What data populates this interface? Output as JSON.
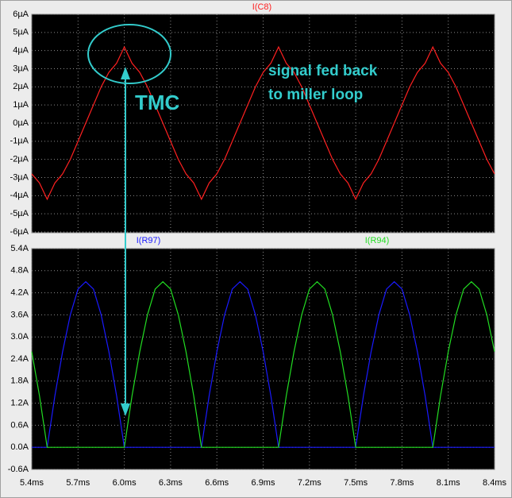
{
  "chart_data": [
    {
      "type": "line",
      "x": [
        5.4,
        5.45,
        5.5,
        5.55,
        5.6,
        5.65,
        5.7,
        5.75,
        5.8,
        5.85,
        5.9,
        5.95,
        6.0,
        6.05,
        6.1,
        6.15,
        6.2,
        6.25,
        6.3,
        6.35,
        6.4,
        6.45,
        6.5,
        6.55,
        6.6,
        6.65,
        6.7,
        6.75,
        6.8,
        6.85,
        6.9,
        6.95,
        7.0,
        7.05,
        7.1,
        7.15,
        7.2,
        7.25,
        7.3,
        7.35,
        7.4,
        7.45,
        7.5,
        7.55,
        7.6,
        7.65,
        7.7,
        7.75,
        7.8,
        7.85,
        7.9,
        7.95,
        8.0,
        8.05,
        8.1,
        8.15,
        8.2,
        8.25,
        8.3,
        8.35,
        8.4
      ],
      "series": [
        {
          "name": "I(C8)",
          "color": "#ff2020",
          "values": [
            -2.8,
            -3.3,
            -4.2,
            -3.3,
            -2.8,
            -2.0,
            -1.0,
            0,
            1.0,
            2.0,
            2.8,
            3.3,
            4.2,
            3.3,
            2.8,
            2.0,
            1.0,
            0,
            -1.0,
            -2.0,
            -2.8,
            -3.3,
            -4.2,
            -3.3,
            -2.8,
            -2.0,
            -1.0,
            0,
            1.0,
            2.0,
            2.8,
            3.3,
            4.2,
            3.3,
            2.8,
            2.0,
            1.0,
            0,
            -1.0,
            -2.0,
            -2.8,
            -3.3,
            -4.2,
            -3.3,
            -2.8,
            -2.0,
            -1.0,
            0,
            1.0,
            2.0,
            2.8,
            3.3,
            4.2,
            3.3,
            2.8,
            2.0,
            1.0,
            0,
            -1.0,
            -2.0,
            -2.8
          ]
        }
      ],
      "xlim": [
        5.4,
        8.4
      ],
      "ylim": [
        -6,
        6
      ],
      "yticks": [
        {
          "value": 6,
          "label": "6µA"
        },
        {
          "value": 5,
          "label": "5µA"
        },
        {
          "value": 4,
          "label": "4µA"
        },
        {
          "value": 3,
          "label": "3µA"
        },
        {
          "value": 2,
          "label": "2µA"
        },
        {
          "value": 1,
          "label": "1µA"
        },
        {
          "value": 0,
          "label": "0µA"
        },
        {
          "value": -1,
          "label": "-1µA"
        },
        {
          "value": -2,
          "label": "-2µA"
        },
        {
          "value": -3,
          "label": "-3µA"
        },
        {
          "value": -4,
          "label": "-4µA"
        },
        {
          "value": -5,
          "label": "-5µA"
        },
        {
          "value": -6,
          "label": "-6µA"
        }
      ],
      "grid": true,
      "annotations": [
        "TMC",
        "signal fed back",
        "to miller loop"
      ]
    },
    {
      "type": "line",
      "x": [
        5.4,
        5.45,
        5.5,
        5.55,
        5.6,
        5.65,
        5.7,
        5.75,
        5.8,
        5.85,
        5.9,
        5.95,
        6.0,
        6.05,
        6.1,
        6.15,
        6.2,
        6.25,
        6.3,
        6.35,
        6.4,
        6.45,
        6.5,
        6.55,
        6.6,
        6.65,
        6.7,
        6.75,
        6.8,
        6.85,
        6.9,
        6.95,
        7.0,
        7.05,
        7.1,
        7.15,
        7.2,
        7.25,
        7.3,
        7.35,
        7.4,
        7.45,
        7.5,
        7.55,
        7.6,
        7.65,
        7.7,
        7.75,
        7.8,
        7.85,
        7.9,
        7.95,
        8.0,
        8.05,
        8.1,
        8.15,
        8.2,
        8.25,
        8.3,
        8.35,
        8.4
      ],
      "series": [
        {
          "name": "I(R97)",
          "color": "#1a1aff",
          "values": [
            0,
            0,
            0,
            1.4,
            2.6,
            3.6,
            4.3,
            4.5,
            4.3,
            3.6,
            2.6,
            1.4,
            0,
            0,
            0,
            0,
            0,
            0,
            0,
            0,
            0,
            0,
            0,
            1.4,
            2.6,
            3.6,
            4.3,
            4.5,
            4.3,
            3.6,
            2.6,
            1.4,
            0,
            0,
            0,
            0,
            0,
            0,
            0,
            0,
            0,
            0,
            0,
            1.4,
            2.6,
            3.6,
            4.3,
            4.5,
            4.3,
            3.6,
            2.6,
            1.4,
            0,
            0,
            0,
            0,
            0,
            0,
            0,
            0,
            0
          ]
        },
        {
          "name": "I(R94)",
          "color": "#22dd22",
          "values": [
            2.6,
            1.4,
            0,
            0,
            0,
            0,
            0,
            0,
            0,
            0,
            0,
            0,
            0,
            1.4,
            2.6,
            3.6,
            4.3,
            4.5,
            4.3,
            3.6,
            2.6,
            1.4,
            0,
            0,
            0,
            0,
            0,
            0,
            0,
            0,
            0,
            0,
            0,
            1.4,
            2.6,
            3.6,
            4.3,
            4.5,
            4.3,
            3.6,
            2.6,
            1.4,
            0,
            0,
            0,
            0,
            0,
            0,
            0,
            0,
            0,
            0,
            0,
            1.4,
            2.6,
            3.6,
            4.3,
            4.5,
            4.3,
            3.6,
            2.6
          ]
        }
      ],
      "xlim": [
        5.4,
        8.4
      ],
      "xticks": [
        {
          "value": 5.4,
          "label": "5.4ms"
        },
        {
          "value": 5.7,
          "label": "5.7ms"
        },
        {
          "value": 6.0,
          "label": "6.0ms"
        },
        {
          "value": 6.3,
          "label": "6.3ms"
        },
        {
          "value": 6.6,
          "label": "6.6ms"
        },
        {
          "value": 6.9,
          "label": "6.9ms"
        },
        {
          "value": 7.2,
          "label": "7.2ms"
        },
        {
          "value": 7.5,
          "label": "7.5ms"
        },
        {
          "value": 7.8,
          "label": "7.8ms"
        },
        {
          "value": 8.1,
          "label": "8.1ms"
        },
        {
          "value": 8.4,
          "label": "8.4ms"
        }
      ],
      "ylim": [
        -0.6,
        5.4
      ],
      "yticks": [
        {
          "value": 5.4,
          "label": "5.4A"
        },
        {
          "value": 4.8,
          "label": "4.8A"
        },
        {
          "value": 4.2,
          "label": "4.2A"
        },
        {
          "value": 3.6,
          "label": "3.6A"
        },
        {
          "value": 3.0,
          "label": "3.0A"
        },
        {
          "value": 2.4,
          "label": "2.4A"
        },
        {
          "value": 1.8,
          "label": "1.8A"
        },
        {
          "value": 1.2,
          "label": "1.2A"
        },
        {
          "value": 0.6,
          "label": "0.6A"
        },
        {
          "value": 0,
          "label": "0.0A"
        },
        {
          "value": -0.6,
          "label": "-0.6A"
        }
      ],
      "grid": true
    }
  ]
}
